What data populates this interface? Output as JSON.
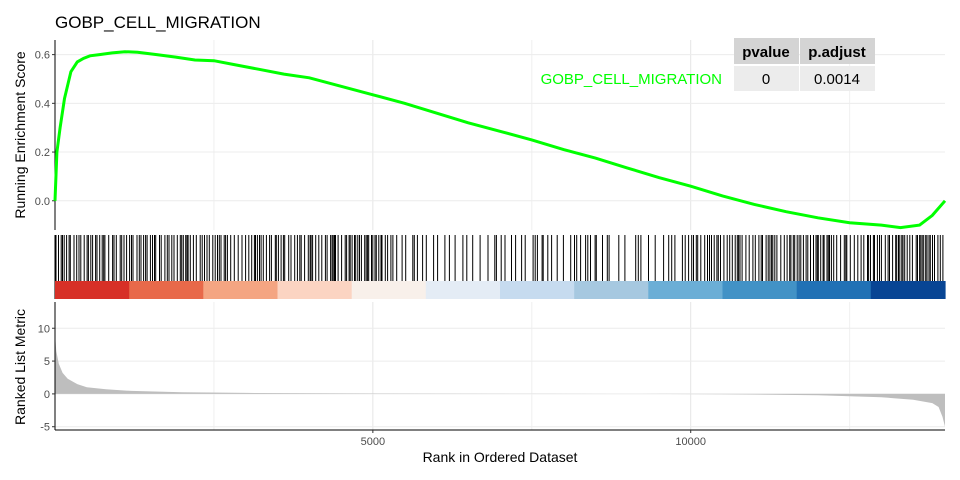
{
  "chart_data": {
    "type": "line",
    "title": "GOBP_CELL_MIGRATION",
    "xlabel": "Rank in Ordered Dataset",
    "xlim": [
      0,
      14000
    ],
    "x_ticks": [
      5000,
      10000
    ],
    "x_tick_labels": [
      "5000",
      "10000"
    ],
    "grid": true,
    "panels": {
      "enrichment": {
        "ylabel": "Running Enrichment Score",
        "ylim": [
          -0.12,
          0.66
        ],
        "y_ticks": [
          0.0,
          0.2,
          0.4,
          0.6
        ],
        "y_tick_labels": [
          "0.0",
          "0.2",
          "0.4",
          "0.6"
        ],
        "series": [
          {
            "name": "GOBP_CELL_MIGRATION",
            "color": "#00ff00",
            "x": [
              0,
              30,
              80,
              150,
              250,
              350,
              450,
              550,
              700,
              900,
              1100,
              1300,
              1600,
              1900,
              2200,
              2500,
              2800,
              3200,
              3600,
              4000,
              4500,
              5000,
              5500,
              6000,
              6500,
              7000,
              7500,
              8000,
              8500,
              9000,
              9500,
              10000,
              10500,
              11000,
              11500,
              12000,
              12500,
              13000,
              13300,
              13600,
              13800,
              14000
            ],
            "y": [
              0.0,
              0.2,
              0.3,
              0.42,
              0.53,
              0.57,
              0.585,
              0.595,
              0.6,
              0.607,
              0.612,
              0.61,
              0.6,
              0.59,
              0.578,
              0.575,
              0.56,
              0.54,
              0.52,
              0.505,
              0.47,
              0.435,
              0.4,
              0.36,
              0.32,
              0.285,
              0.25,
              0.21,
              0.175,
              0.135,
              0.095,
              0.06,
              0.02,
              -0.015,
              -0.045,
              -0.07,
              -0.09,
              -0.1,
              -0.11,
              -0.1,
              -0.06,
              0.0
            ]
          }
        ]
      },
      "ranked_list": {
        "ylabel": "Ranked List Metric",
        "ylim": [
          -5.5,
          14
        ],
        "y_ticks": [
          -5,
          0,
          5,
          10
        ],
        "y_tick_labels": [
          "-5",
          "0",
          "5",
          "10"
        ],
        "fill_color": "#bebebe",
        "x": [
          0,
          20,
          60,
          120,
          200,
          350,
          500,
          800,
          1200,
          2000,
          3000,
          4500,
          6000,
          7500,
          8800,
          9200,
          10500,
          12000,
          13000,
          13500,
          13800,
          13900,
          13960,
          14000
        ],
        "y": [
          9.0,
          6.5,
          4.6,
          3.2,
          2.3,
          1.5,
          1.0,
          0.7,
          0.45,
          0.25,
          0.15,
          0.08,
          0.04,
          0.02,
          0.0,
          0.0,
          -0.05,
          -0.2,
          -0.5,
          -0.9,
          -1.4,
          -2.0,
          -3.5,
          -5.0
        ]
      },
      "gene_hits": {
        "bar_color": "#000000",
        "colorbar": [
          "#d73027",
          "#e8694a",
          "#f4a582",
          "#fbd4c2",
          "#f8f0ea",
          "#e4ecf5",
          "#c6dbef",
          "#a6c8e0",
          "#6baed6",
          "#4292c6",
          "#2171b5",
          "#084594"
        ]
      }
    },
    "table": {
      "columns": [
        "pvalue",
        "p.adjust"
      ],
      "rows": [
        {
          "label": "GOBP_CELL_MIGRATION",
          "values": [
            "0",
            "0.0014"
          ]
        }
      ]
    }
  }
}
